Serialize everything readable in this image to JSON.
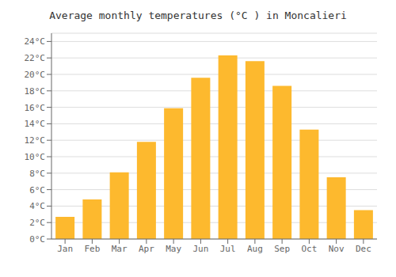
{
  "chart_data": {
    "type": "bar",
    "title": "Average monthly temperatures (°C ) in Moncalieri",
    "categories": [
      "Jan",
      "Feb",
      "Mar",
      "Apr",
      "May",
      "Jun",
      "Jul",
      "Aug",
      "Sep",
      "Oct",
      "Nov",
      "Dec"
    ],
    "values": [
      2.7,
      4.8,
      8.1,
      11.8,
      15.9,
      19.6,
      22.3,
      21.6,
      18.6,
      13.3,
      7.5,
      3.5
    ],
    "color": "#FDB92E",
    "ylim": [
      0,
      25
    ],
    "yticks": [
      {
        "value": 0,
        "label": "0°C"
      },
      {
        "value": 2,
        "label": "2°C"
      },
      {
        "value": 4,
        "label": "4°C"
      },
      {
        "value": 6,
        "label": "6°C"
      },
      {
        "value": 8,
        "label": "8°C"
      },
      {
        "value": 10,
        "label": "10°C"
      },
      {
        "value": 12,
        "label": "12°C"
      },
      {
        "value": 14,
        "label": "14°C"
      },
      {
        "value": 16,
        "label": "16°C"
      },
      {
        "value": 18,
        "label": "18°C"
      },
      {
        "value": 20,
        "label": "20°C"
      },
      {
        "value": 22,
        "label": "22°C"
      },
      {
        "value": 24,
        "label": "24°C"
      }
    ],
    "grid": true
  }
}
